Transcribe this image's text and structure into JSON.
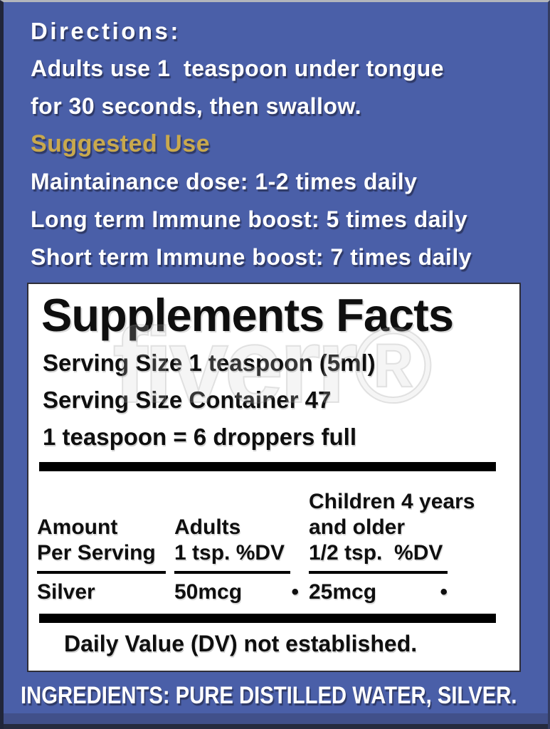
{
  "colors": {
    "label_blue": "#4a5fa8",
    "accent_gold": "#c9a94d",
    "panel_white": "#ffffff",
    "rule_black": "#000000",
    "text_white": "#ffffff",
    "text_black": "#0f0f0f"
  },
  "directions": {
    "title": "Directions:",
    "lines": [
      "Adults use 1  teaspoon under tongue",
      "for 30 seconds, then swallow."
    ],
    "suggested_use_heading": "Suggested Use",
    "dosage_lines": [
      "Maintainance dose: 1-2 times daily",
      "Long term Immune boost: 5 times daily",
      "Short term Immune boost: 7 times daily"
    ]
  },
  "supplement_facts": {
    "title": "Supplements Facts",
    "serving_size": "Serving Size 1 teaspoon (5ml)",
    "servings_per_container": "Serving Size Container 47",
    "dropper_note": "1 teaspoon = 6 droppers full",
    "table": {
      "amount_header": [
        "Amount",
        "Per Serving"
      ],
      "adults_header": [
        "Adults",
        "1 tsp. %DV"
      ],
      "children_header": [
        "Children 4 years",
        "and older",
        "1/2 tsp.  %DV"
      ],
      "row": {
        "nutrient": "Silver",
        "adults_amount": "50mcg",
        "adults_dv": "•",
        "children_amount": "25mcg",
        "children_dv": "•"
      }
    },
    "footnote": "Daily Value (DV) not established."
  },
  "ingredients": "INGREDIENTS: PURE DISTILLED WATER, SILVER.",
  "watermark": "fiverr®"
}
